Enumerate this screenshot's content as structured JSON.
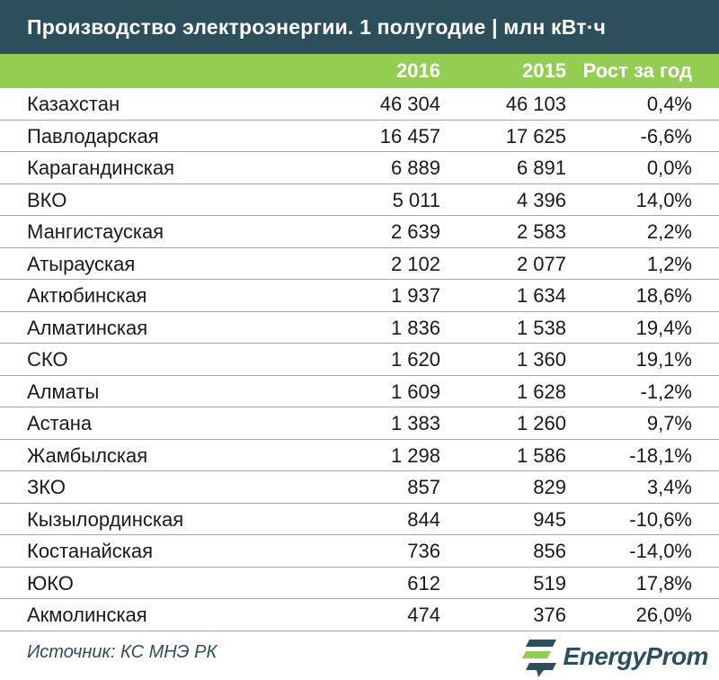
{
  "title": "Производство электроэнергии. 1 полугодие | млн кВт·ч",
  "header": {
    "col_region": "",
    "col_2016": "2016",
    "col_2015": "2015",
    "col_growth": "Рост за год"
  },
  "chart_data": {
    "type": "table",
    "title": "Производство электроэнергии. 1 полугодие | млн кВт·ч",
    "columns": [
      "",
      "2016",
      "2015",
      "Рост за год"
    ],
    "rows": [
      {
        "region": "Казахстан",
        "y2016": "46 304",
        "y2015": "46 103",
        "growth": "0,4%"
      },
      {
        "region": "Павлодарская",
        "y2016": "16 457",
        "y2015": "17 625",
        "growth": "-6,6%"
      },
      {
        "region": "Карагандинская",
        "y2016": "6 889",
        "y2015": "6 891",
        "growth": "0,0%"
      },
      {
        "region": "ВКО",
        "y2016": "5 011",
        "y2015": "4 396",
        "growth": "14,0%"
      },
      {
        "region": "Мангистауская",
        "y2016": "2 639",
        "y2015": "2 583",
        "growth": "2,2%"
      },
      {
        "region": "Атырауская",
        "y2016": "2 102",
        "y2015": "2 077",
        "growth": "1,2%"
      },
      {
        "region": "Актюбинская",
        "y2016": "1 937",
        "y2015": "1 634",
        "growth": "18,6%"
      },
      {
        "region": "Алматинская",
        "y2016": "1 836",
        "y2015": "1 538",
        "growth": "19,4%"
      },
      {
        "region": "СКО",
        "y2016": "1 620",
        "y2015": "1 360",
        "growth": "19,1%"
      },
      {
        "region": "Алматы",
        "y2016": "1 609",
        "y2015": "1 628",
        "growth": "-1,2%"
      },
      {
        "region": "Астана",
        "y2016": "1 383",
        "y2015": "1 260",
        "growth": "9,7%"
      },
      {
        "region": "Жамбылская",
        "y2016": "1 298",
        "y2015": "1 586",
        "growth": "-18,1%"
      },
      {
        "region": "ЗКО",
        "y2016": "857",
        "y2015": "829",
        "growth": "3,4%"
      },
      {
        "region": "Кызылординская",
        "y2016": "844",
        "y2015": "945",
        "growth": "-10,6%"
      },
      {
        "region": "Костанайская",
        "y2016": "736",
        "y2015": "856",
        "growth": "-14,0%"
      },
      {
        "region": "ЮКО",
        "y2016": "612",
        "y2015": "519",
        "growth": "17,8%"
      },
      {
        "region": "Акмолинская",
        "y2016": "474",
        "y2015": "376",
        "growth": "26,0%"
      }
    ]
  },
  "footer": {
    "source": "Источник: КС МНЭ РК",
    "brand": "EnergyProm"
  },
  "colors": {
    "title_bg": "#2d4f5c",
    "header_bg": "#93cd52",
    "text": "#1a1a1a",
    "brand": "#2d4f5c"
  }
}
